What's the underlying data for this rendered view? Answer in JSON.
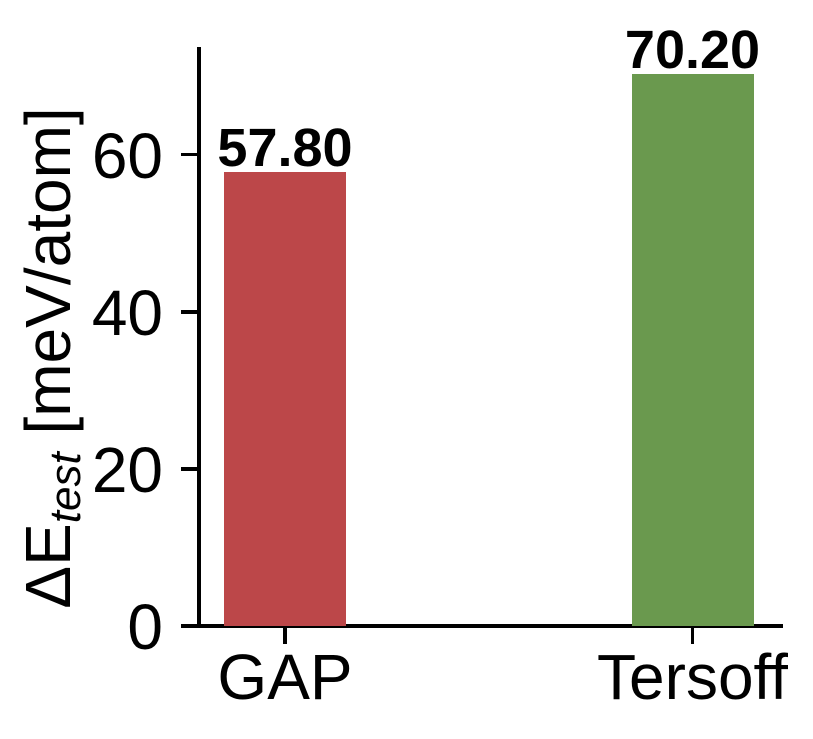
{
  "figure": {
    "background": "#ffffff",
    "text_color": "#000000"
  },
  "y_axis": {
    "label_prefix": "ΔE",
    "label_subscript": "test",
    "label_suffix": " [meV/atom]",
    "tick_labels": [
      "0",
      "20",
      "40",
      "60"
    ]
  },
  "chart_data": {
    "type": "bar",
    "categories": [
      "GAP",
      "Tersoff"
    ],
    "values": [
      57.8,
      70.2
    ],
    "value_labels": [
      "57.80",
      "70.20"
    ],
    "bar_colors": [
      "#BC4749",
      "#6A994E"
    ],
    "title": "",
    "xlabel": "",
    "ylabel": "ΔE_test [meV/atom]",
    "ylim": [
      0,
      73.7
    ],
    "yticks": [
      0,
      20,
      40,
      60
    ],
    "grid": false,
    "legend": false,
    "axis_color": "#000000",
    "value_label_style": "bold, above bar"
  }
}
